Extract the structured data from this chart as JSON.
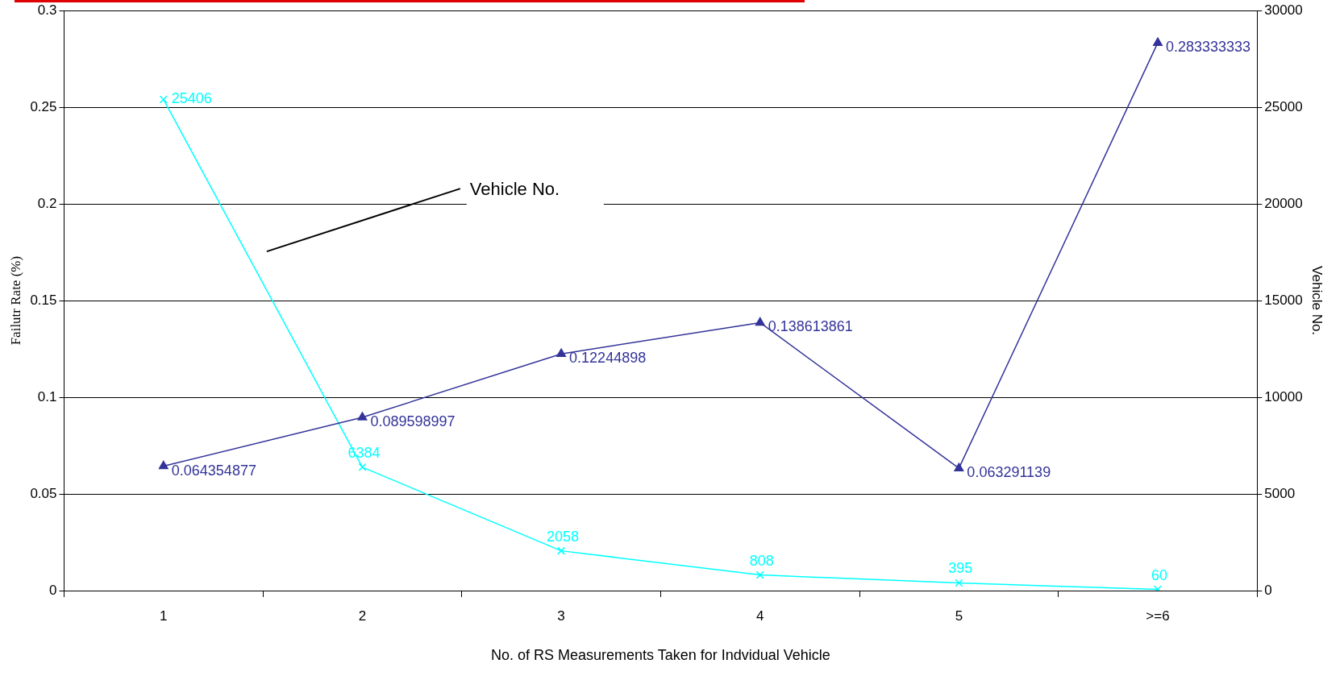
{
  "chart_data": {
    "type": "line",
    "xlabel": "No. of RS Measurements Taken for Indvidual Vehicle",
    "ylabel": "Failutr Rate (%)",
    "y2label": "Vehicle No.",
    "categories": [
      "1",
      "2",
      "3",
      "4",
      "5",
      ">=6"
    ],
    "series": [
      {
        "color": "#333399",
        "marker": "triangle",
        "values": [
          0.064354877,
          0.089598997,
          0.12244898,
          0.138613861,
          0.063291139,
          0.283333333
        ]
      },
      {
        "color": "#00ffff",
        "marker": "cross",
        "axis": "y2",
        "values": [
          25406,
          6384,
          2058,
          808,
          395,
          60
        ]
      }
    ],
    "ylim": [
      0,
      0.3
    ],
    "yticks": [
      0,
      0.05,
      0.1,
      0.15,
      0.2,
      0.25,
      0.3
    ],
    "y2lim": [
      0,
      30000
    ],
    "y2ticks": [
      0,
      5000,
      10000,
      15000,
      20000,
      25000,
      30000
    ],
    "grid": "y",
    "legend": false,
    "data_labels": true,
    "line_style": "solid",
    "annotations": [
      "Vehicle No."
    ]
  }
}
